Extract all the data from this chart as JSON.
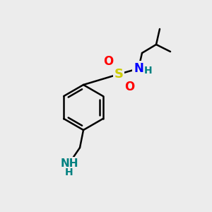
{
  "bg_color": "#ececec",
  "bond_color": "#000000",
  "bond_width": 1.8,
  "double_bond_color": "#000000",
  "atoms": {
    "S": {
      "color": "#cccc00",
      "fontsize": 13,
      "fontweight": "bold"
    },
    "N": {
      "color": "#0000ff",
      "fontsize": 12,
      "fontweight": "bold"
    },
    "O": {
      "color": "#ff0000",
      "fontsize": 12,
      "fontweight": "bold"
    },
    "NH": {
      "color": "#008080",
      "fontsize": 11,
      "fontweight": "bold"
    },
    "H": {
      "color": "#008080",
      "fontsize": 11,
      "fontweight": "bold"
    }
  },
  "figsize": [
    3.0,
    3.0
  ],
  "dpi": 100
}
